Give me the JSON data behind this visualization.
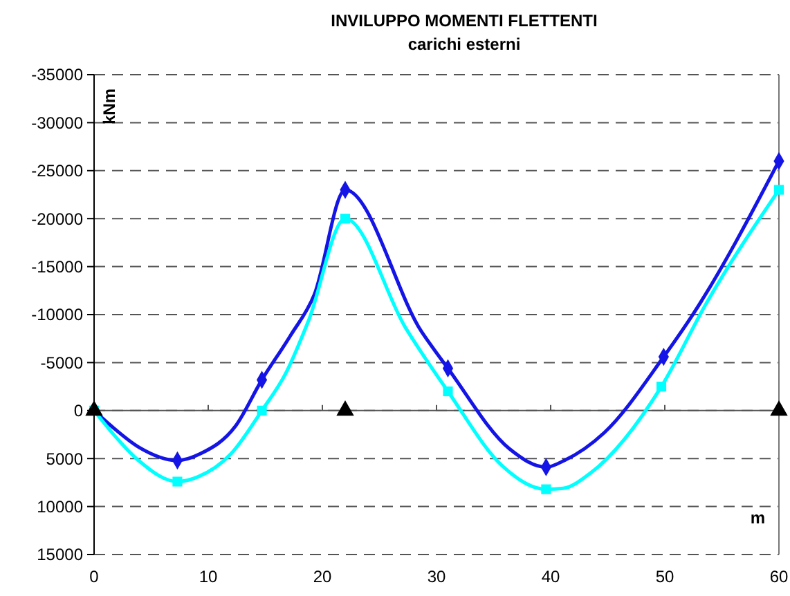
{
  "chart_data": {
    "type": "line",
    "title": "INVILUPPO MOMENTI FLETTENTI",
    "subtitle": "carichi esterni",
    "xlabel": "m",
    "ylabel": "kNm",
    "xlim": [
      0,
      60
    ],
    "xticks": [
      0,
      10,
      20,
      30,
      40,
      50,
      60
    ],
    "ylim": [
      15000,
      -35000
    ],
    "yticks": [
      -35000,
      -30000,
      -25000,
      -20000,
      -15000,
      -10000,
      -5000,
      0,
      5000,
      10000,
      15000
    ],
    "grid": "y",
    "line_style": "solid",
    "marker": "none",
    "series": [
      {
        "color": "#1414e6",
        "x": [
          0,
          1.5,
          3.9,
          7.3,
          9.3,
          12.4,
          14.7,
          17.2,
          19.3,
          22,
          28.7,
          31,
          36.4,
          39.6,
          41.2,
          44.7,
          49.9,
          52.4,
          60
        ],
        "values": [
          0,
          1600,
          3800,
          5200,
          4500,
          1600,
          -3200,
          -7800,
          -12100,
          -23000,
          -8200,
          -4400,
          4000,
          5900,
          5200,
          2300,
          -5600,
          -9900,
          -26000
        ]
      },
      {
        "color": "#00ffff",
        "x": [
          0,
          1.5,
          3.9,
          7.3,
          9.1,
          12,
          14.7,
          16.8,
          18.8,
          22,
          27.3,
          31,
          35.8,
          39.6,
          41.1,
          43.5,
          49.7,
          53.6,
          60
        ],
        "values": [
          0,
          2200,
          5200,
          7400,
          6900,
          4500,
          0,
          -3900,
          -9400,
          -20000,
          -8600,
          -2000,
          5800,
          8200,
          8100,
          6500,
          -2500,
          -11100,
          -23000
        ]
      },
      {
        "type": "scatter",
        "marker": "diamond",
        "color": "#1414e6",
        "x": [
          7.3,
          14.7,
          22,
          31,
          39.6,
          49.9,
          60
        ],
        "values": [
          5200,
          -3200,
          -23000,
          -4400,
          5900,
          -5600,
          -26000
        ]
      },
      {
        "type": "scatter",
        "marker": "square",
        "color": "#00ffff",
        "x": [
          0,
          7.3,
          14.7,
          22,
          31,
          39.6,
          49.7,
          60
        ],
        "values": [
          0,
          7400,
          0,
          -20000,
          -2000,
          8200,
          -2500,
          -23000
        ]
      },
      {
        "type": "scatter",
        "marker": "triangle",
        "color": "#000000",
        "x": [
          0,
          22,
          60
        ],
        "values": [
          0,
          0,
          0
        ]
      }
    ]
  }
}
